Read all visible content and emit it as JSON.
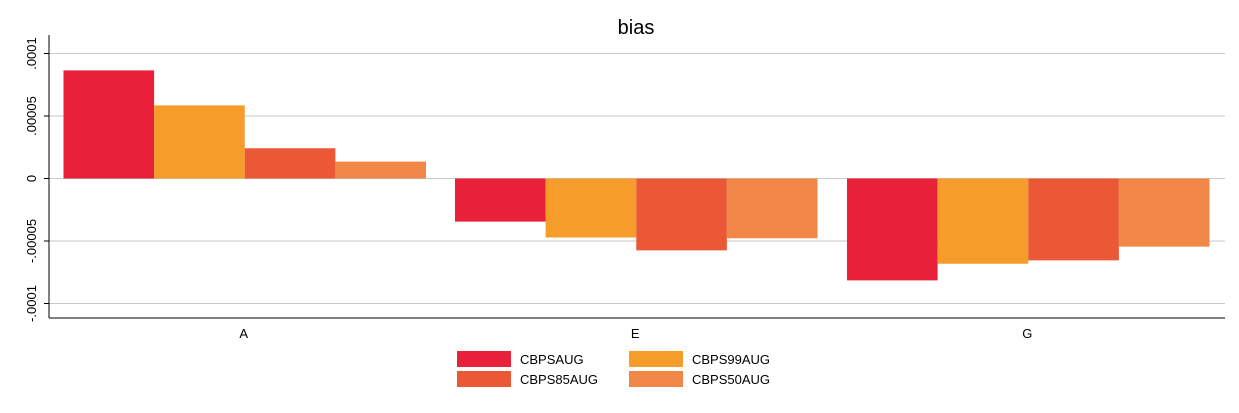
{
  "chart_data": {
    "type": "bar",
    "title": "bias",
    "xlabel": "",
    "ylabel": "",
    "categories": [
      "A",
      "E",
      "G"
    ],
    "series": [
      {
        "name": "CBPSAUG",
        "color": "#e8203a",
        "values": [
          8.65e-05,
          -3.45e-05,
          -8.15e-05
        ]
      },
      {
        "name": "CBPS99AUG",
        "color": "#f59c2a",
        "values": [
          5.85e-05,
          -4.72e-05,
          -6.82e-05
        ]
      },
      {
        "name": "CBPS85AUG",
        "color": "#ea5836",
        "values": [
          2.42e-05,
          -5.75e-05,
          -6.55e-05
        ]
      },
      {
        "name": "CBPS50AUG",
        "color": "#f08746",
        "values": [
          1.35e-05,
          -4.78e-05,
          -5.45e-05
        ]
      }
    ],
    "ylim": [
      -0.0001,
      0.0001
    ],
    "yticks": [
      {
        "value": 0.0001,
        "label": ".0001"
      },
      {
        "value": 5e-05,
        "label": ".00005"
      },
      {
        "value": 0,
        "label": "0"
      },
      {
        "value": -5e-05,
        "label": "-.00005"
      },
      {
        "value": -0.0001,
        "label": "-.0001"
      }
    ],
    "grid": true,
    "legend_position": "bottom"
  }
}
